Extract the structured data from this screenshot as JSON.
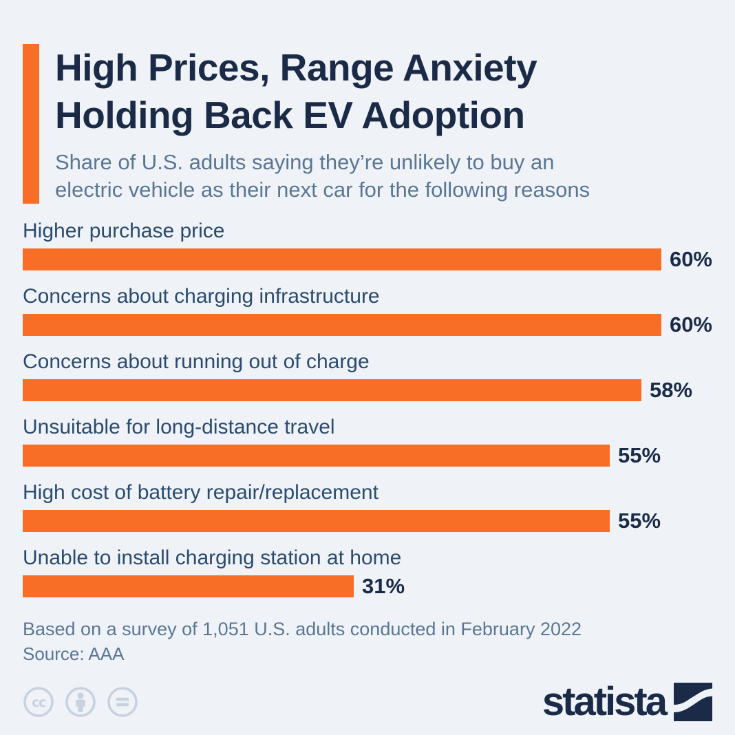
{
  "header": {
    "title_lines": [
      "High Prices, Range Anxiety",
      "Holding Back EV Adoption"
    ],
    "subtitle_lines": [
      "Share of U.S. adults saying they’re unlikely to buy an",
      "electric vehicle as their next car for the following reasons"
    ]
  },
  "chart_data": {
    "type": "bar",
    "orientation": "horizontal",
    "title": "High Prices, Range Anxiety Holding Back EV Adoption",
    "subtitle": "Share of U.S. adults saying they’re unlikely to buy an electric vehicle as their next car for the following reasons",
    "categories": [
      "Higher purchase price",
      "Concerns about charging infrastructure",
      "Concerns about running out of charge",
      "Unsuitable for long-distance travel",
      "High cost of battery repair/replacement",
      "Unable to install charging station at home"
    ],
    "values": [
      60,
      60,
      58,
      55,
      55,
      31
    ],
    "unit": "%",
    "value_labels": [
      "60%",
      "60%",
      "58%",
      "55%",
      "55%",
      "31%"
    ],
    "xlim": [
      0,
      64.5
    ],
    "grid": false,
    "legend": false,
    "bar_color": "#f96e27"
  },
  "footer": {
    "note": "Based on a survey of 1,051 U.S. adults conducted in February 2022",
    "source": "Source: AAA",
    "brand": "statista",
    "license_icons": [
      "cc-icon",
      "attribution-icon",
      "no-derivatives-icon"
    ]
  },
  "colors": {
    "background": "#eff3f8",
    "accent_orange": "#f96e27",
    "title_navy": "#1b2b47",
    "label_navy": "#2b4b6e",
    "muted_steel": "#5a7694",
    "license_gray": "#c8d2de"
  }
}
